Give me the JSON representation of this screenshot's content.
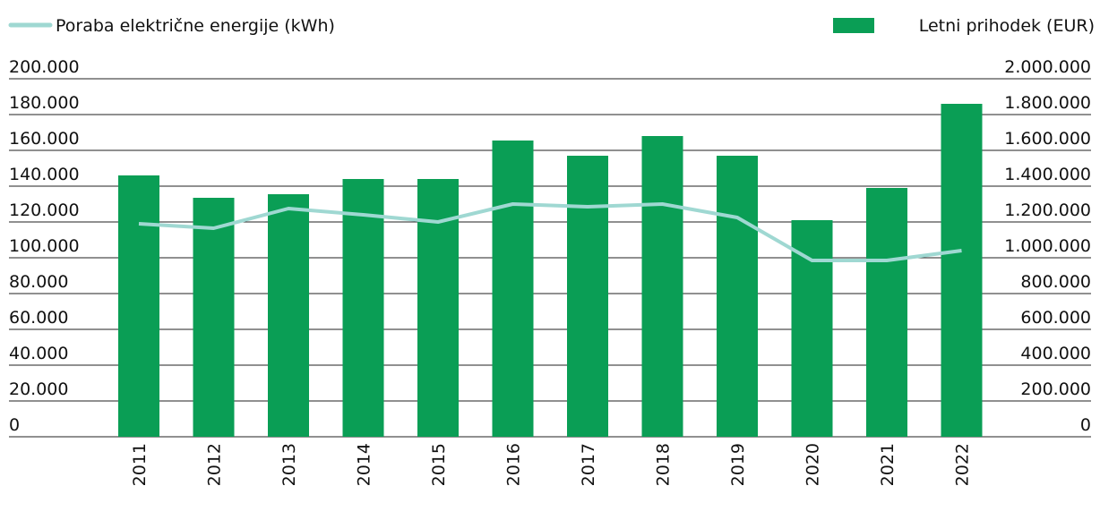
{
  "chart_data": {
    "type": "combo",
    "categories": [
      "2011",
      "2012",
      "2013",
      "2014",
      "2015",
      "2016",
      "2017",
      "2018",
      "2019",
      "2020",
      "2021",
      "2022"
    ],
    "series": [
      {
        "name": "Poraba električne energije (kWh)",
        "type": "line",
        "axis": "y",
        "color": "#9fd8d2",
        "values": [
          119000,
          116500,
          127500,
          124000,
          120000,
          130000,
          128500,
          130000,
          122500,
          98500,
          98500,
          104000
        ]
      },
      {
        "name": "Letni prihodek (EUR)",
        "type": "bar",
        "axis": "y2",
        "color": "#0a9e55",
        "values": [
          1460000,
          1335000,
          1355000,
          1440000,
          1440000,
          1655000,
          1570000,
          1680000,
          1570000,
          1210000,
          1390000,
          1860000
        ]
      }
    ],
    "ylim": [
      0,
      200000
    ],
    "yticks": [
      0,
      {
        "value": 20000,
        "label": "20.000"
      },
      {
        "value": 40000,
        "label": "40.000"
      },
      {
        "value": 60000,
        "label": "60.000"
      },
      {
        "value": 80000,
        "label": "80.000"
      },
      {
        "value": 100000,
        "label": "100.000"
      },
      {
        "value": 120000,
        "label": "120.000"
      },
      {
        "value": 140000,
        "label": "140.000"
      },
      {
        "value": 160000,
        "label": "160.000"
      },
      {
        "value": 180000,
        "label": "180.000"
      },
      {
        "value": 200000,
        "label": "200.000"
      }
    ],
    "y2lim": [
      0,
      2000000
    ],
    "y2ticks": [
      0,
      {
        "value": 200000,
        "label": "200.000"
      },
      {
        "value": 400000,
        "label": "400.000"
      },
      {
        "value": 600000,
        "label": "600.000"
      },
      {
        "value": 800000,
        "label": "800.000"
      },
      {
        "value": 1000000,
        "label": "1.000.000"
      },
      {
        "value": 1200000,
        "label": "1.200.000"
      },
      {
        "value": 1400000,
        "label": "1.400.000"
      },
      {
        "value": 1600000,
        "label": "1.600.000"
      },
      {
        "value": 1800000,
        "label": "1.800.000"
      },
      {
        "value": 2000000,
        "label": "2.000.000"
      }
    ],
    "grid": true
  }
}
